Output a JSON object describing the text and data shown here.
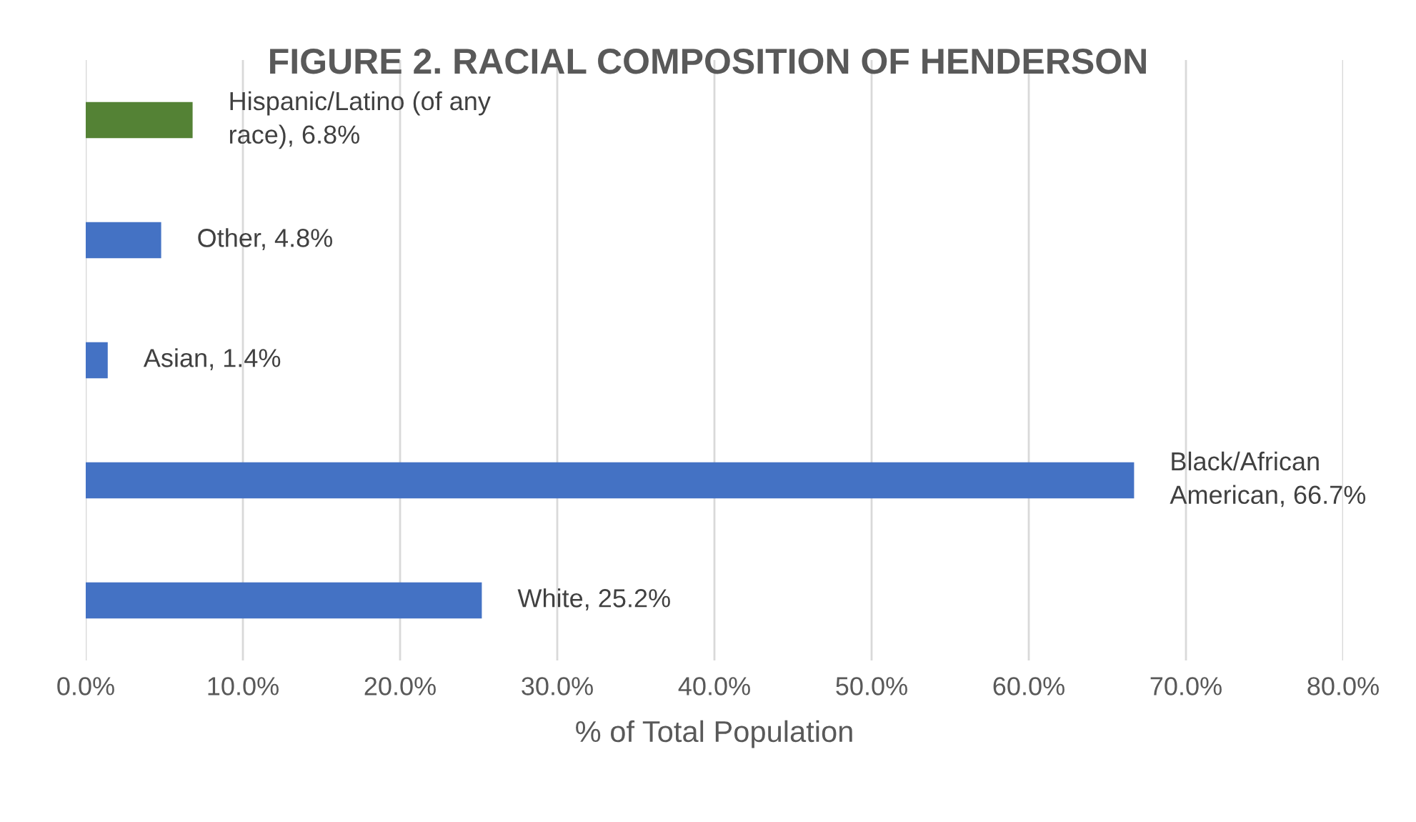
{
  "chart_data": {
    "type": "bar",
    "orientation": "horizontal",
    "title": "FIGURE 2. RACIAL COMPOSITION OF HENDERSON",
    "xlabel": "% of Total Population",
    "categories": [
      null,
      null,
      null,
      null,
      null
    ],
    "values": [
      6.8,
      4.8,
      1.4,
      66.7,
      25.2
    ],
    "colors": [
      "#548235",
      "#4472c4",
      "#4472c4",
      "#4472c4",
      "#4472c4"
    ],
    "value_labels": [
      "Hispanic/Latino (of any\nrace), 6.8%",
      "Other, 4.8%",
      "Asian, 1.4%",
      "Black/African\nAmerican, 66.7%",
      "White, 25.2%"
    ],
    "xlim": [
      0,
      80
    ],
    "xticks": [
      {
        "value": 0,
        "label": "0.0%"
      },
      {
        "value": 10,
        "label": "10.0%"
      },
      {
        "value": 20,
        "label": "20.0%"
      },
      {
        "value": 30,
        "label": "30.0%"
      },
      {
        "value": 40,
        "label": "40.0%"
      },
      {
        "value": 50,
        "label": "50.0%"
      },
      {
        "value": 60,
        "label": "60.0%"
      },
      {
        "value": 70,
        "label": "70.0%"
      },
      {
        "value": 80,
        "label": "80.0%"
      }
    ],
    "grid": "x",
    "legend": false
  }
}
